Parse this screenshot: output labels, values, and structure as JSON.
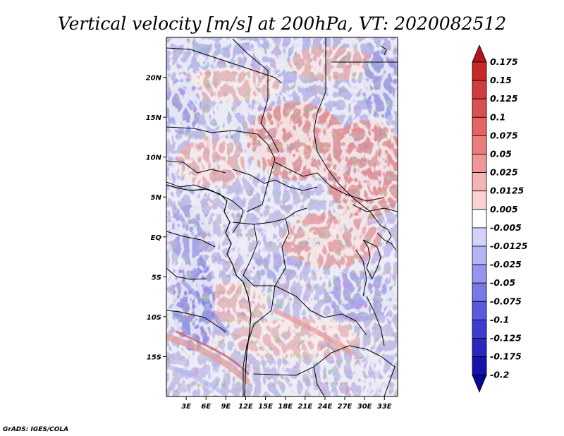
{
  "chart_data": {
    "type": "heatmap",
    "title": "Vertical velocity [m/s] at 200hPa, VT: 2020082512",
    "variable": "Vertical velocity",
    "units": "m/s",
    "level": "200hPa",
    "valid_time": "2020082512",
    "x_ticks": [
      "3E",
      "6E",
      "9E",
      "12E",
      "15E",
      "18E",
      "21E",
      "24E",
      "27E",
      "30E",
      "33E"
    ],
    "x_tick_values": [
      3,
      6,
      9,
      12,
      15,
      18,
      21,
      24,
      27,
      30,
      33
    ],
    "y_ticks": [
      "20N",
      "15N",
      "10N",
      "5N",
      "EQ",
      "5S",
      "10S",
      "15S"
    ],
    "y_tick_values": [
      20,
      15,
      10,
      5,
      0,
      -5,
      -10,
      -15
    ],
    "lon_range": [
      0,
      35
    ],
    "lat_range": [
      -20,
      25
    ],
    "colorbar_labels": [
      "0.175",
      "0.15",
      "0.125",
      "0.1",
      "0.075",
      "0.05",
      "0.025",
      "0.0125",
      "0.005",
      "-0.005",
      "-0.0125",
      "-0.025",
      "-0.05",
      "-0.075",
      "-0.1",
      "-0.125",
      "-0.175",
      "-0.2"
    ],
    "colorbar_colors": [
      "#b4141e",
      "#c82828",
      "#d23c3c",
      "#dc5050",
      "#e46464",
      "#ea7c7c",
      "#f09696",
      "#f5b4b4",
      "#fad2d2",
      "#ffffff",
      "#d2d2fa",
      "#b4b4f5",
      "#9696ee",
      "#7878e6",
      "#5a5ade",
      "#3c3cd2",
      "#2828c0",
      "#1414aa",
      "#0a0a96"
    ]
  },
  "footer": {
    "credit": "GrADS: IGES/COLA"
  }
}
